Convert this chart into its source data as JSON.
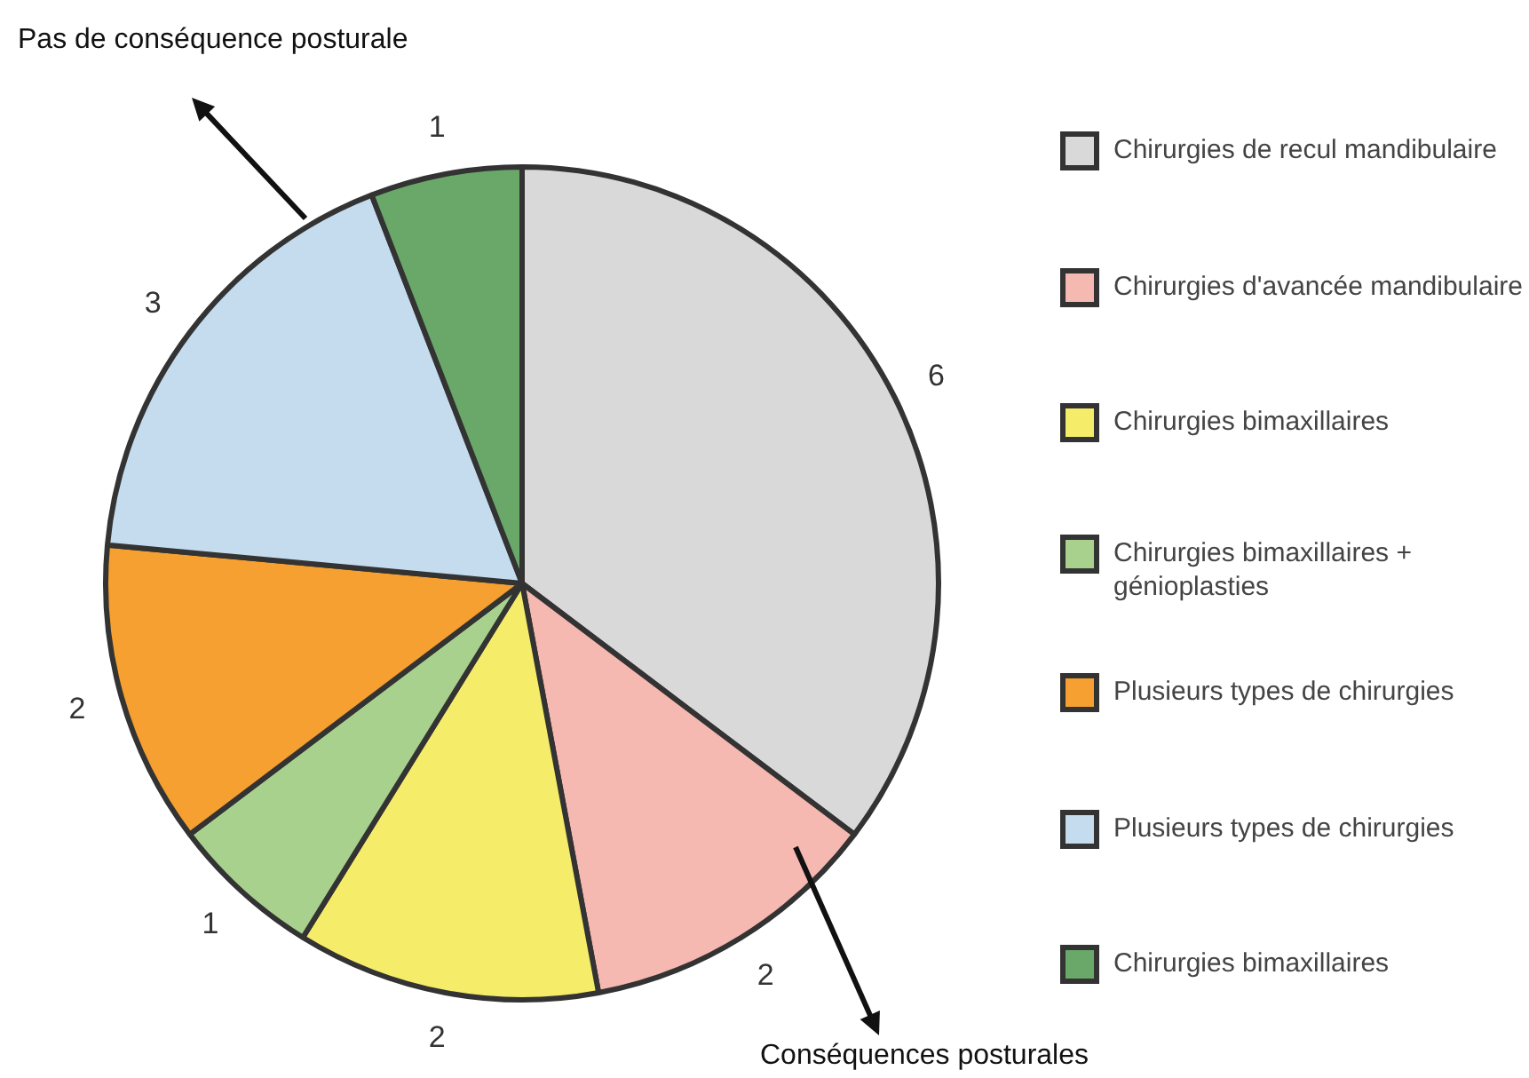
{
  "chart_data": {
    "type": "pie",
    "categories": [
      "Chirurgies de recul mandibulaire",
      "Chirurgies d'avancée mandibulaire",
      "Chirurgies bimaxillaires",
      "Chirurgies bimaxillaires + génioplasties",
      "Plusieurs types de chirurgies",
      "Plusieurs types de chirurgies",
      "Chirurgies bimaxillaires"
    ],
    "values": [
      6,
      2,
      2,
      1,
      2,
      3,
      1
    ],
    "colors": [
      "#d9d9d9",
      "#f5b9b2",
      "#f5ec6a",
      "#a9d18e",
      "#f5a030",
      "#c4dcee",
      "#6aa86a"
    ],
    "data_labels": true,
    "legend": "right",
    "annotations": [
      "Pas de conséquence posturale",
      "Conséquences posturales"
    ]
  }
}
